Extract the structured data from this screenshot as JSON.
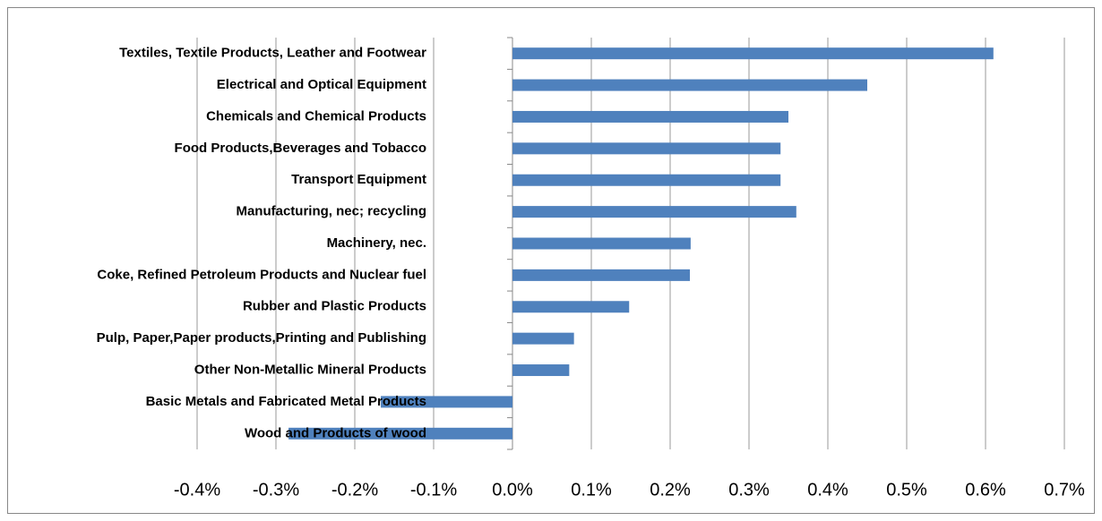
{
  "chart_data": {
    "type": "hbar",
    "categories": [
      "Textiles, Textile Products, Leather and Footwear",
      "Electrical and Optical Equipment",
      "Chemicals and  Chemical Products",
      "Food Products,Beverages and Tobacco",
      "Transport Equipment",
      "Manufacturing, nec; recycling",
      "Machinery, nec.",
      "Coke, Refined Petroleum Products and Nuclear fuel",
      "Rubber and Plastic Products",
      "Pulp, Paper,Paper products,Printing and Publishing",
      "Other Non-Metallic Mineral Products",
      "Basic Metals and Fabricated Metal Products",
      "Wood and Products of wood"
    ],
    "values": [
      0.61,
      0.45,
      0.35,
      0.34,
      0.34,
      0.36,
      0.226,
      0.225,
      0.148,
      0.078,
      0.072,
      -0.167,
      -0.284
    ],
    "color": "#4f81bd",
    "xlim": [
      -0.4,
      0.7
    ],
    "xticks": [
      {
        "value": -0.4,
        "label": "-0.4%"
      },
      {
        "value": -0.3,
        "label": "-0.3%"
      },
      {
        "value": -0.2,
        "label": "-0.2%"
      },
      {
        "value": -0.1,
        "label": "-0.1%"
      },
      {
        "value": 0,
        "label": "0.0%"
      },
      {
        "value": 0.1,
        "label": "0.1%"
      },
      {
        "value": 0.2,
        "label": "0.2%"
      },
      {
        "value": 0.3,
        "label": "0.3%"
      },
      {
        "value": 0.4,
        "label": "0.4%"
      },
      {
        "value": 0.5,
        "label": "0.5%"
      },
      {
        "value": 0.6,
        "label": "0.6%"
      },
      {
        "value": 0.7,
        "label": "0.7%"
      }
    ],
    "grid": true
  }
}
